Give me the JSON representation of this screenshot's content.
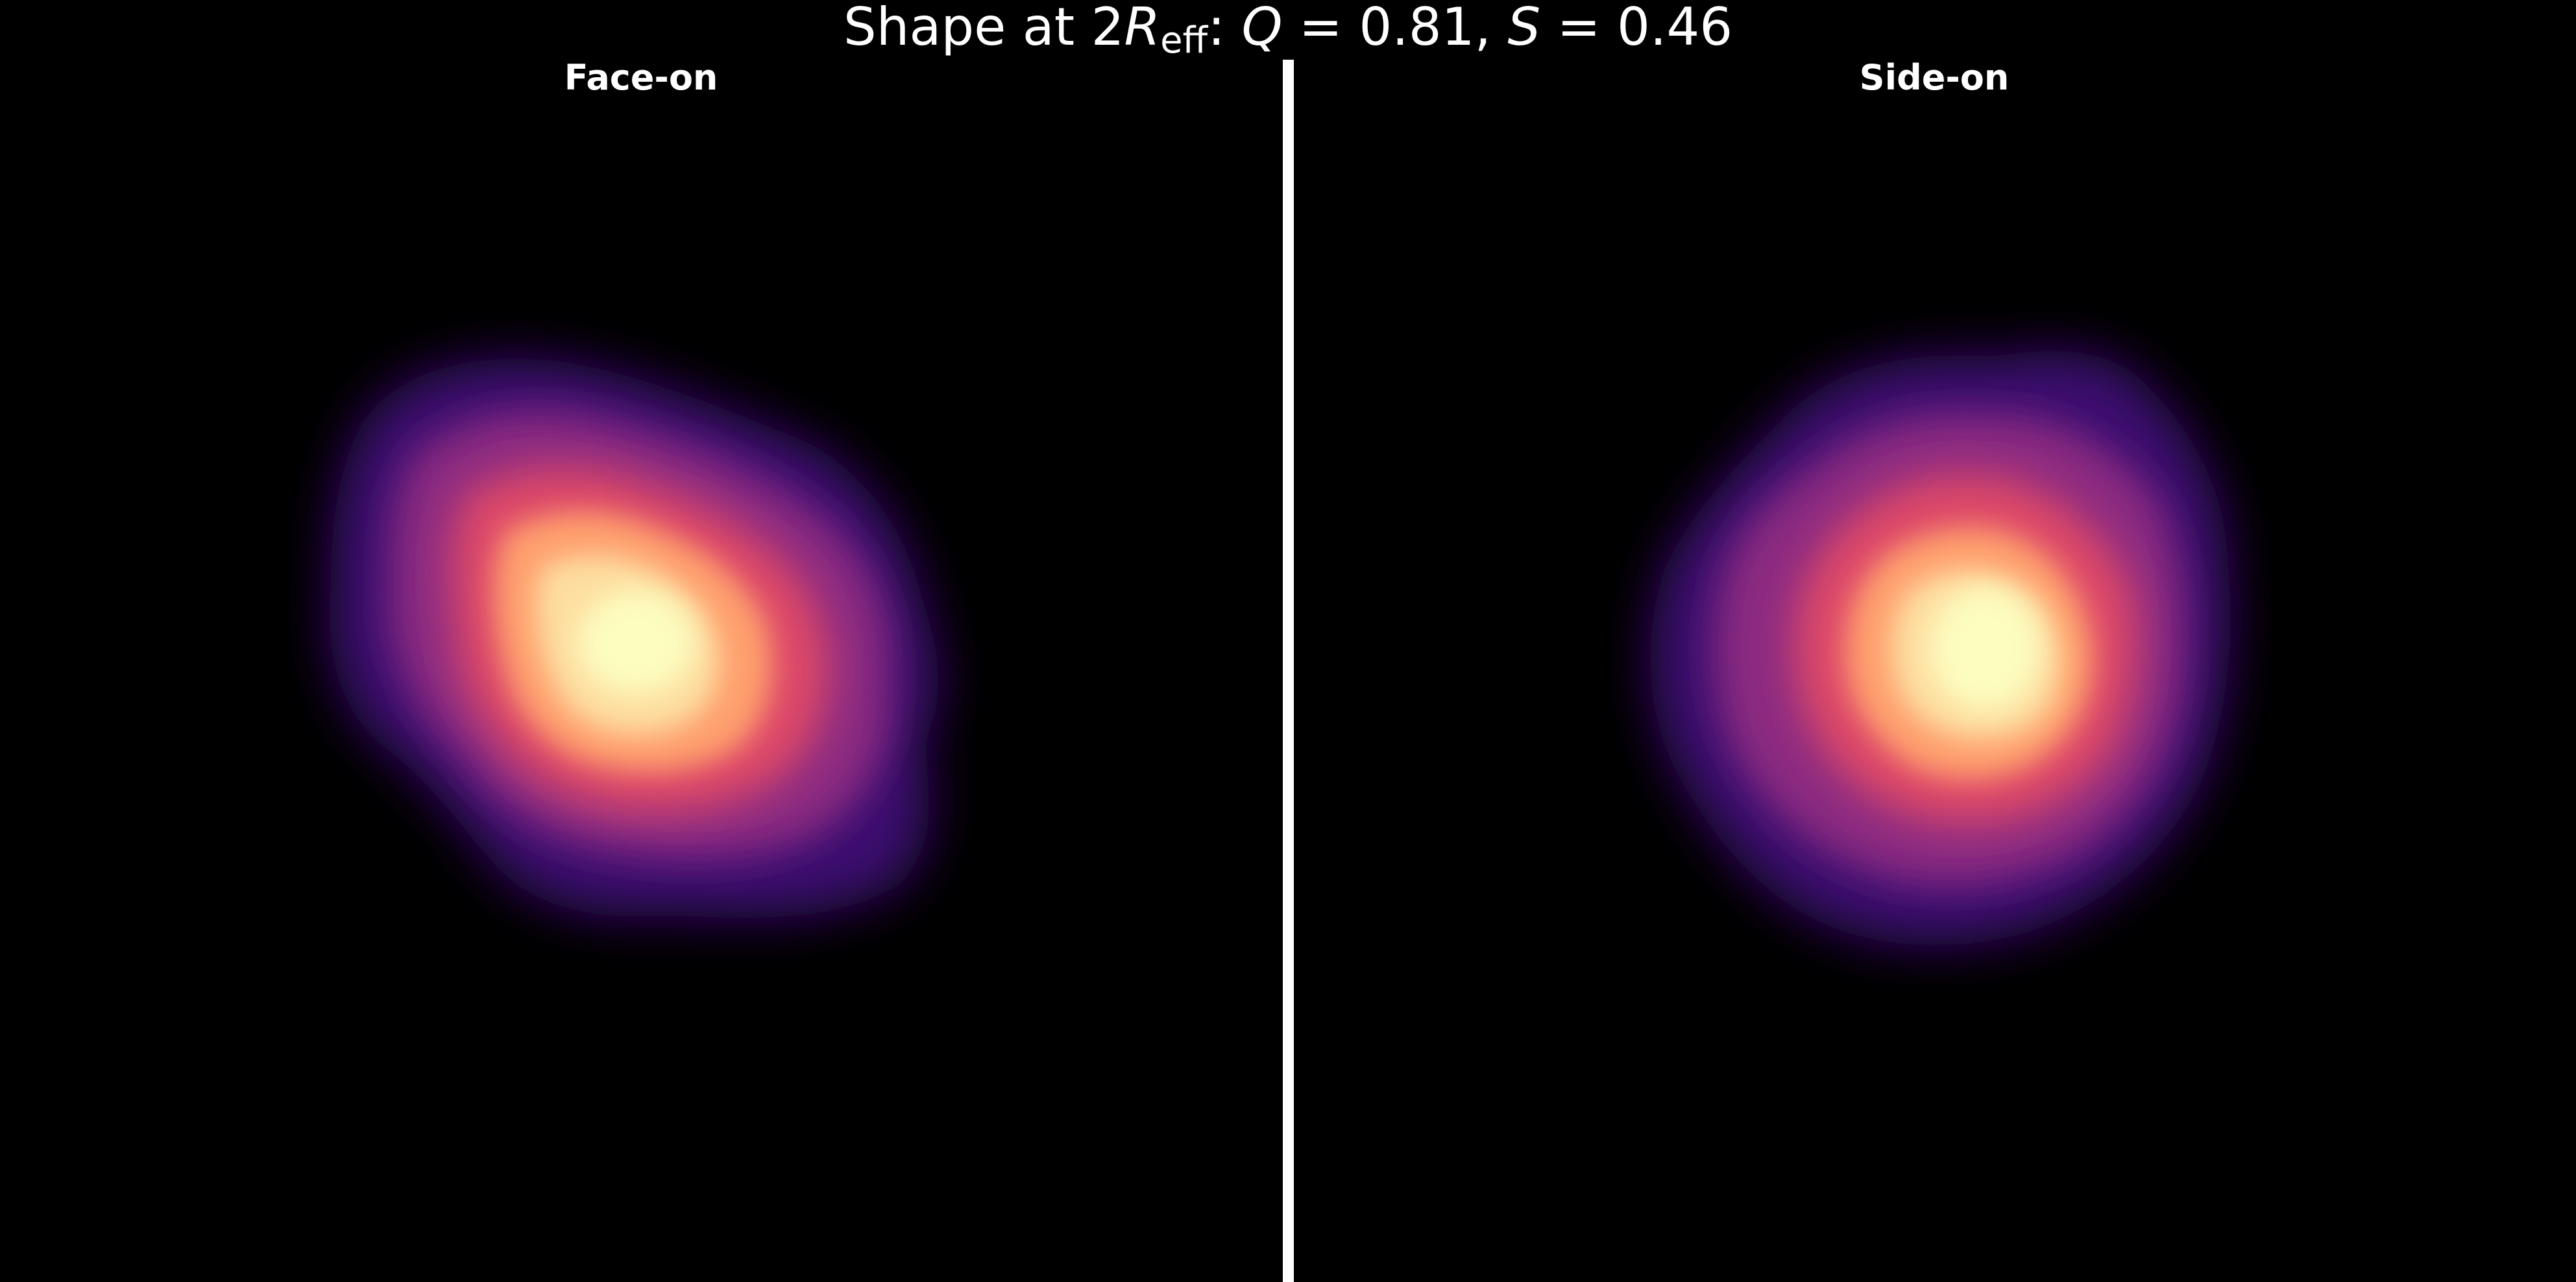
{
  "figure": {
    "title_prefix": "Shape at 2",
    "title_R": "R",
    "title_sub": "eff",
    "title_colon": ": ",
    "title_Q": "Q",
    "title_Q_value": " = 0.81, ",
    "title_S": "S",
    "title_S_value": " = 0.46"
  },
  "panels": [
    {
      "title": "Face-on"
    },
    {
      "title": "Side-on"
    }
  ],
  "colors": {
    "background": "#000000",
    "divider": "#ffffff",
    "colormap": "magma"
  }
}
